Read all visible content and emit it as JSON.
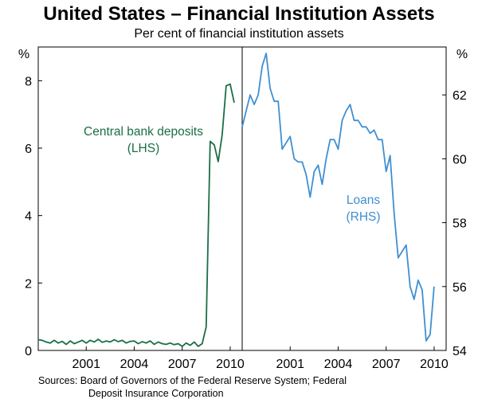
{
  "title": "United States – Financial Institution Assets",
  "subtitle": "Per cent of financial institution assets",
  "sources_line1": "Sources: Board of Governors of the Federal Reserve System; Federal",
  "sources_line2": "Deposit Insurance Corporation",
  "chart_data": [
    {
      "type": "line",
      "panel": "left",
      "ylabel": "%",
      "ylim": [
        0,
        9
      ],
      "yticks": [
        0,
        2,
        4,
        6,
        8
      ],
      "xlim": [
        1998.0,
        2010.75
      ],
      "xticks": [
        2001,
        2004,
        2007,
        2010
      ],
      "grid": false,
      "color": "#1b6e46",
      "annotation": {
        "line1": "Central bank deposits",
        "line2": "(LHS)"
      },
      "series": [
        {
          "x": [
            1998.0,
            1998.25,
            1998.5,
            1998.75,
            1999.0,
            1999.25,
            1999.5,
            1999.75,
            2000.0,
            2000.25,
            2000.5,
            2000.75,
            2001.0,
            2001.25,
            2001.5,
            2001.75,
            2002.0,
            2002.25,
            2002.5,
            2002.75,
            2003.0,
            2003.25,
            2003.5,
            2003.75,
            2004.0,
            2004.25,
            2004.5,
            2004.75,
            2005.0,
            2005.25,
            2005.5,
            2005.75,
            2006.0,
            2006.25,
            2006.5,
            2006.75,
            2007.0,
            2007.25,
            2007.5,
            2007.75,
            2008.0,
            2008.25,
            2008.5,
            2008.75,
            2009.0,
            2009.25,
            2009.5,
            2009.75,
            2010.0,
            2010.25
          ],
          "values": [
            0.32,
            0.3,
            0.25,
            0.22,
            0.3,
            0.22,
            0.27,
            0.18,
            0.28,
            0.2,
            0.25,
            0.3,
            0.22,
            0.3,
            0.25,
            0.33,
            0.24,
            0.28,
            0.25,
            0.32,
            0.26,
            0.3,
            0.22,
            0.27,
            0.28,
            0.2,
            0.26,
            0.22,
            0.28,
            0.18,
            0.25,
            0.2,
            0.18,
            0.22,
            0.17,
            0.2,
            0.12,
            0.22,
            0.15,
            0.25,
            0.12,
            0.2,
            0.7,
            6.2,
            6.1,
            5.6,
            6.4,
            7.85,
            7.9,
            7.35
          ]
        }
      ]
    },
    {
      "type": "line",
      "panel": "right",
      "ylabel": "%",
      "ylim": [
        54,
        63.5
      ],
      "yticks": [
        54,
        56,
        58,
        60,
        62
      ],
      "xlim": [
        1998.0,
        2010.75
      ],
      "xticks": [
        2001,
        2004,
        2007,
        2010
      ],
      "grid": false,
      "color": "#3f8fd2",
      "annotation": {
        "line1": "Loans",
        "line2": "(RHS)"
      },
      "series": [
        {
          "x": [
            1998.0,
            1998.25,
            1998.5,
            1998.75,
            1999.0,
            1999.25,
            1999.5,
            1999.75,
            2000.0,
            2000.25,
            2000.5,
            2000.75,
            2001.0,
            2001.25,
            2001.5,
            2001.75,
            2002.0,
            2002.25,
            2002.5,
            2002.75,
            2003.0,
            2003.25,
            2003.5,
            2003.75,
            2004.0,
            2004.25,
            2004.5,
            2004.75,
            2005.0,
            2005.25,
            2005.5,
            2005.75,
            2006.0,
            2006.25,
            2006.5,
            2006.75,
            2007.0,
            2007.25,
            2007.5,
            2007.75,
            2008.0,
            2008.25,
            2008.5,
            2008.75,
            2009.0,
            2009.25,
            2009.5,
            2009.75,
            2010.0
          ],
          "values": [
            61.0,
            61.5,
            62.0,
            61.7,
            62.0,
            62.9,
            63.3,
            62.2,
            61.8,
            61.8,
            60.3,
            60.5,
            60.7,
            60.0,
            59.9,
            59.9,
            59.5,
            58.8,
            59.6,
            59.8,
            59.2,
            60.0,
            60.6,
            60.6,
            60.3,
            61.2,
            61.5,
            61.7,
            61.2,
            61.2,
            61.0,
            61.0,
            60.8,
            60.9,
            60.6,
            60.6,
            59.6,
            60.1,
            58.3,
            56.9,
            57.1,
            57.3,
            56.0,
            55.6,
            56.2,
            55.9,
            54.3,
            54.5,
            56.0
          ]
        }
      ]
    }
  ]
}
